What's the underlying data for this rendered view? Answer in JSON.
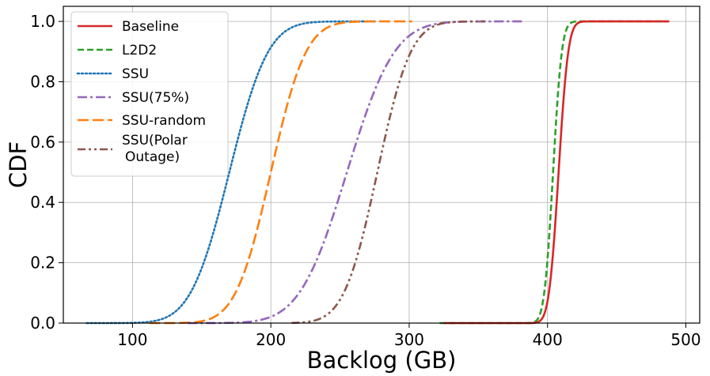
{
  "chart_data": {
    "type": "line",
    "title": "",
    "xlabel": "Backlog (GB)",
    "ylabel": "CDF",
    "xlim": [
      50,
      510
    ],
    "ylim": [
      0,
      1.05
    ],
    "xticks": [
      100,
      200,
      300,
      400,
      500
    ],
    "yticks": [
      "0.0",
      "0.2",
      "0.4",
      "0.6",
      "0.8",
      "1.0"
    ],
    "grid": true,
    "legend_position": "top-left",
    "series": [
      {
        "name": "Baseline",
        "color": "#d62728",
        "dash": "solid",
        "dist": "normal",
        "mean": 408,
        "sd": 5.5,
        "xmin": 325,
        "xmax": 488
      },
      {
        "name": "L2D2",
        "color": "#2ca02c",
        "dash": "dashed",
        "dist": "normal",
        "mean": 404,
        "sd": 5.0,
        "xmin": 322,
        "xmax": 486
      },
      {
        "name": "SSU",
        "color": "#1f77b4",
        "dash": "dotted",
        "dist": "normal",
        "mean": 170,
        "sd": 22,
        "xmin": 67,
        "xmax": 275
      },
      {
        "name": "SSU(75%)",
        "color": "#9467bd",
        "dash": "dashdot",
        "dist": "normal",
        "mean": 255,
        "sd": 27,
        "xmin": 140,
        "xmax": 382
      },
      {
        "name": "SSU-random",
        "color": "#ff7f0e",
        "dash": "longdash",
        "dist": "normal",
        "mean": 200,
        "sd": 20,
        "xmin": 112,
        "xmax": 302
      },
      {
        "name": "SSU(Polar\nOutage)",
        "color": "#8c564b",
        "dash": "dashdotdot",
        "dist": "normal",
        "mean": 277,
        "sd": 19,
        "xmin": 215,
        "xmax": 355
      }
    ]
  }
}
